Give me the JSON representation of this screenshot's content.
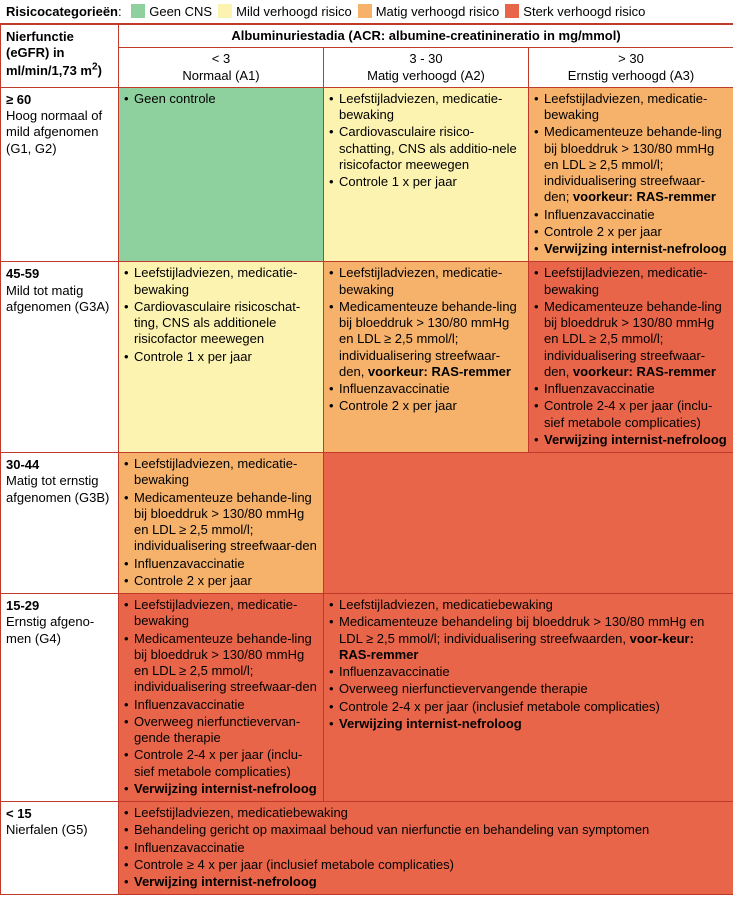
{
  "legend": {
    "label": "Risicocategorieën",
    "items": [
      {
        "color": "#8fd19e",
        "text": "Geen CNS"
      },
      {
        "color": "#fdf3b0",
        "text": "Mild verhoogd risico"
      },
      {
        "color": "#f6b26b",
        "text": "Matig verhoogd risico"
      },
      {
        "color": "#e9654a",
        "text": "Sterk verhoogd risico"
      }
    ]
  },
  "colors": {
    "green": "#8fd19e",
    "yellow": "#fdf3b0",
    "orange": "#f6b26b",
    "red": "#e9654a",
    "white": "#ffffff",
    "border": "#c0392b"
  },
  "header": {
    "rowTitleBold": "Nierfunctie (eGFR) in ml/",
    "rowTitleLine2": "min/1,73 m",
    "rowTitleSup": "2",
    "rowTitleEnd": ")",
    "spanTitle": "Albuminuriestadia (ACR: albumine-creatinineratio in mg/mmol)",
    "cols": [
      {
        "top": "< 3",
        "bottom": "Normaal (A1)"
      },
      {
        "top": "3 - 30",
        "bottom": "Matig verhoogd (A2)"
      },
      {
        "top": "> 30",
        "bottom": "Ernstig verhoogd (A3)"
      }
    ]
  },
  "rows": [
    {
      "head": {
        "bold": "≥ 60",
        "rest": "Hoog normaal of mild afgenomen (G1, G2)"
      },
      "cells": [
        {
          "color": "green",
          "items": [
            {
              "text": "Geen controle"
            }
          ]
        },
        {
          "color": "yellow",
          "items": [
            {
              "text": "Leefstijladviezen, medicatie-bewaking"
            },
            {
              "text": "Cardiovasculaire risico-schatting, CNS als additio-nele risicofactor meewegen"
            },
            {
              "text": "Controle 1 x per jaar"
            }
          ]
        },
        {
          "color": "orange",
          "items": [
            {
              "text": "Leefstijladviezen, medicatie-bewaking"
            },
            {
              "html": "Medicamenteuze behande-ling bij bloeddruk > 130/80 mmHg en LDL ≥ 2,5 mmol/l; individualisering streefwaar-den; <b>voorkeur: RAS-remmer</b>"
            },
            {
              "text": "Influenzavaccinatie"
            },
            {
              "text": "Controle 2 x per jaar"
            },
            {
              "html": "<b>Verwijzing internist-nefroloog</b>"
            }
          ]
        }
      ]
    },
    {
      "head": {
        "bold": "45-59",
        "rest": "Mild tot matig afgenomen (G3A)"
      },
      "cells": [
        {
          "color": "yellow",
          "items": [
            {
              "text": "Leefstijladviezen, medicatie-bewaking"
            },
            {
              "text": "Cardiovasculaire risicoschat-ting, CNS als additionele risicofactor meewegen"
            },
            {
              "text": "Controle 1 x per jaar"
            }
          ]
        },
        {
          "color": "orange",
          "items": [
            {
              "text": "Leefstijladviezen, medicatie-bewaking"
            },
            {
              "html": "Medicamenteuze behande-ling bij bloeddruk > 130/80 mmHg en LDL ≥ 2,5 mmol/l; individualisering streefwaar-den, <b>voorkeur: RAS-remmer</b>"
            },
            {
              "text": "Influenzavaccinatie"
            },
            {
              "text": "Controle 2 x per jaar"
            }
          ]
        },
        {
          "color": "red",
          "items": [
            {
              "text": "Leefstijladviezen, medicatie-bewaking"
            },
            {
              "html": "Medicamenteuze behande-ling bij bloeddruk > 130/80 mmHg en LDL ≥ 2,5 mmol/l; individualisering streefwaar-den, <b>voorkeur: RAS-remmer</b>"
            },
            {
              "text": "Influenzavaccinatie"
            },
            {
              "text": "Controle 2-4 x per jaar (inclu-sief metabole complicaties)"
            },
            {
              "html": "<b>Verwijzing  internist-nefroloog</b>"
            }
          ]
        }
      ]
    },
    {
      "head": {
        "bold": "30-44",
        "rest": "Matig tot ernstig afgenomen (G3B)"
      },
      "cells": [
        {
          "color": "orange",
          "items": [
            {
              "text": "Leefstijladviezen, medicatie-bewaking"
            },
            {
              "text": "Medicamenteuze behande-ling bij bloeddruk > 130/80 mmHg en LDL ≥ 2,5 mmol/l; individualisering streefwaar-den"
            },
            {
              "text": "Influenzavaccinatie"
            },
            {
              "text": "Controle 2 x per jaar"
            }
          ]
        },
        {
          "color": "red",
          "colspan": 2,
          "items": []
        }
      ]
    },
    {
      "head": {
        "bold": "15-29",
        "rest": "Ernstig afgeno-men (G4)"
      },
      "cells": [
        {
          "color": "red",
          "items": [
            {
              "text": "Leefstijladviezen, medicatie-bewaking"
            },
            {
              "text": "Medicamenteuze behande-ling bij bloeddruk > 130/80 mmHg en LDL ≥ 2,5 mmol/l; individualisering streefwaar-den"
            },
            {
              "text": "Influenzavaccinatie"
            },
            {
              "text": "Overweeg nierfunctievervan-gende therapie"
            },
            {
              "text": "Controle 2-4 x per jaar (inclu-sief metabole complicaties)"
            },
            {
              "html": "<b>Verwijzing internist-nefroloog</b>"
            }
          ]
        },
        {
          "color": "red",
          "colspan": 2,
          "items": [
            {
              "text": "Leefstijladviezen, medicatiebewaking"
            },
            {
              "html": "Medicamenteuze behandeling bij bloeddruk > 130/80 mmHg en LDL ≥ 2,5 mmol/l; individualisering streefwaarden, <b>voor-keur: RAS-remmer</b>"
            },
            {
              "text": "Influenzavaccinatie"
            },
            {
              "text": "Overweeg nierfunctievervangende therapie"
            },
            {
              "text": "Controle 2-4 x per jaar (inclusief metabole complicaties)"
            },
            {
              "html": "<b>Verwijzing internist-nefroloog</b>"
            }
          ]
        }
      ]
    },
    {
      "head": {
        "bold": "< 15",
        "rest": "Nierfalen (G5)"
      },
      "cells": [
        {
          "color": "red",
          "colspan": 3,
          "items": [
            {
              "text": "Leefstijladviezen, medicatiebewaking"
            },
            {
              "text": "Behandeling gericht op maximaal behoud van nierfunctie en behandeling van symptomen"
            },
            {
              "text": "Influenzavaccinatie"
            },
            {
              "text": "Controle ≥ 4 x per jaar (inclusief metabole complicaties)"
            },
            {
              "html": "<b>Verwijzing internist-nefroloog</b>"
            }
          ]
        }
      ]
    }
  ],
  "columnWidths": {
    "rowhead": 118,
    "col": 205
  }
}
